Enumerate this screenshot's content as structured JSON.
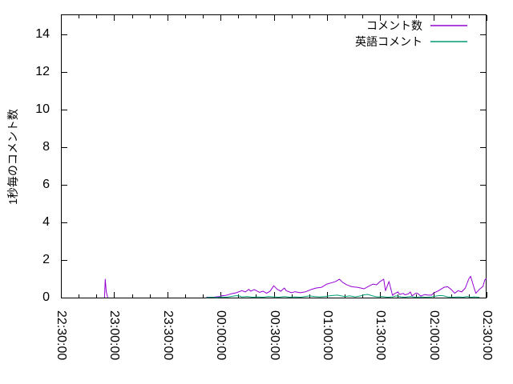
{
  "window": {
    "background": "#ffffff",
    "border_color": "#000000",
    "text_color": "#000000"
  },
  "chart_data": {
    "type": "line",
    "title": "",
    "xlabel": "",
    "ylabel": "1秒毎のコメント数",
    "grid": false,
    "legend_position": "top-right-inside",
    "x_axis": {
      "unit": "minutes since 22:30:00",
      "range_minutes": [
        0,
        240
      ],
      "major_tick_interval_minutes": 30,
      "minor_tick_interval_minutes": 10,
      "major_ticks": [
        {
          "minute": 0,
          "label": "22:30:00"
        },
        {
          "minute": 30,
          "label": "23:00:00"
        },
        {
          "minute": 60,
          "label": "23:30:00"
        },
        {
          "minute": 90,
          "label": "00:00:00"
        },
        {
          "minute": 120,
          "label": "00:30:00"
        },
        {
          "minute": 150,
          "label": "01:00:00"
        },
        {
          "minute": 180,
          "label": "01:30:00"
        },
        {
          "minute": 210,
          "label": "02:00:00"
        },
        {
          "minute": 240,
          "label": "02:30:00"
        }
      ],
      "tick_label_rotation_deg": 90
    },
    "y_axis": {
      "min": 0,
      "max": 15.1,
      "ticks": [
        0,
        2,
        4,
        6,
        8,
        10,
        12,
        14
      ]
    },
    "series": [
      {
        "name": "コメント数",
        "color": "#9400D3",
        "points_format": "[minute_since_22:30, comments_per_second]",
        "segments": [
          [
            [
              24.6,
              0
            ],
            [
              25.0,
              0.98
            ],
            [
              25.6,
              0.3
            ],
            [
              26.4,
              0
            ]
          ],
          [
            [
              82,
              0.02
            ],
            [
              86,
              0.02
            ],
            [
              89,
              0.05
            ],
            [
              91,
              0.1
            ],
            [
              93,
              0.12
            ],
            [
              96,
              0.2
            ],
            [
              99,
              0.26
            ],
            [
              102,
              0.37
            ],
            [
              104,
              0.3
            ],
            [
              106,
              0.44
            ],
            [
              107,
              0.34
            ],
            [
              109,
              0.43
            ],
            [
              112,
              0.28
            ],
            [
              114,
              0.34
            ],
            [
              116,
              0.23
            ],
            [
              118,
              0.35
            ],
            [
              120,
              0.63
            ],
            [
              122,
              0.44
            ],
            [
              124,
              0.34
            ],
            [
              126,
              0.51
            ],
            [
              127,
              0.37
            ],
            [
              130,
              0.26
            ],
            [
              132,
              0.31
            ],
            [
              135,
              0.26
            ],
            [
              138,
              0.31
            ],
            [
              141,
              0.43
            ],
            [
              144,
              0.51
            ],
            [
              147,
              0.55
            ],
            [
              148,
              0.61
            ],
            [
              150,
              0.72
            ],
            [
              153,
              0.8
            ],
            [
              155,
              0.86
            ],
            [
              157,
              0.98
            ],
            [
              159,
              0.8
            ],
            [
              161,
              0.69
            ],
            [
              162,
              0.65
            ],
            [
              164,
              0.58
            ],
            [
              167,
              0.55
            ],
            [
              169,
              0.51
            ],
            [
              171,
              0.47
            ],
            [
              173,
              0.58
            ],
            [
              176,
              0.72
            ],
            [
              178,
              0.68
            ],
            [
              180,
              0.86
            ],
            [
              182,
              0.98
            ],
            [
              183,
              0.37
            ],
            [
              185,
              0.86
            ],
            [
              187,
              0.12
            ],
            [
              188,
              0.2
            ],
            [
              190,
              0.3
            ],
            [
              191,
              0.17
            ],
            [
              193,
              0.22
            ],
            [
              194,
              0.15
            ],
            [
              196,
              0.2
            ],
            [
              197,
              0.3
            ],
            [
              198,
              0.09
            ],
            [
              200,
              0.23
            ],
            [
              201,
              0.23
            ],
            [
              203,
              0.08
            ],
            [
              205,
              0.16
            ],
            [
              207,
              0.13
            ],
            [
              209,
              0.13
            ],
            [
              210,
              0.23
            ],
            [
              213,
              0.37
            ],
            [
              216,
              0.55
            ],
            [
              218,
              0.58
            ],
            [
              220,
              0.44
            ],
            [
              222,
              0.23
            ],
            [
              224,
              0.37
            ],
            [
              226,
              0.3
            ],
            [
              228,
              0.51
            ],
            [
              230,
              1.0
            ],
            [
              231,
              1.13
            ],
            [
              233,
              0.51
            ],
            [
              234,
              0.23
            ],
            [
              236,
              0.44
            ],
            [
              238,
              0.6
            ],
            [
              239,
              0.94
            ],
            [
              240,
              1.03
            ]
          ]
        ]
      },
      {
        "name": "英語コメント",
        "color": "#009E73",
        "points_format": "[minute_since_22:30, comments_per_second]",
        "segments": [
          [
            [
              82,
              0
            ],
            [
              85,
              0.02
            ],
            [
              88,
              0
            ],
            [
              90,
              0.04
            ],
            [
              93,
              0.02
            ],
            [
              96,
              0.06
            ],
            [
              98,
              0.09
            ],
            [
              100,
              0.1
            ],
            [
              102,
              0.04
            ],
            [
              105,
              0.06
            ],
            [
              108,
              0.02
            ],
            [
              111,
              0.04
            ],
            [
              114,
              0.02
            ],
            [
              117,
              0.06
            ],
            [
              120,
              0.04
            ],
            [
              123,
              0.02
            ],
            [
              126,
              0.06
            ],
            [
              129,
              0.02
            ],
            [
              132,
              0.04
            ],
            [
              135,
              0.02
            ],
            [
              138,
              0.06
            ],
            [
              140,
              0.09
            ],
            [
              143,
              0.06
            ],
            [
              146,
              0.04
            ],
            [
              149,
              0.06
            ],
            [
              151,
              0.09
            ],
            [
              153,
              0.11
            ],
            [
              156,
              0.13
            ],
            [
              158,
              0.09
            ],
            [
              160,
              0.06
            ],
            [
              163,
              0.09
            ],
            [
              166,
              0.04
            ],
            [
              169,
              0.09
            ],
            [
              171,
              0.15
            ],
            [
              173,
              0.17
            ],
            [
              175,
              0.11
            ],
            [
              177,
              0.06
            ],
            [
              179,
              0.04
            ],
            [
              181,
              0.06
            ],
            [
              184,
              0.02
            ],
            [
              187,
              0.04
            ],
            [
              189,
              0.09
            ],
            [
              192,
              0.04
            ],
            [
              194,
              0.02
            ],
            [
              197,
              0.06
            ],
            [
              200,
              0.02
            ],
            [
              203,
              0.04
            ],
            [
              206,
              0.02
            ],
            [
              209,
              0.04
            ],
            [
              212,
              0.09
            ],
            [
              214,
              0.11
            ],
            [
              216,
              0.09
            ],
            [
              218,
              0.04
            ],
            [
              221,
              0.02
            ],
            [
              224,
              0.04
            ],
            [
              227,
              0.02
            ],
            [
              229,
              0.06
            ],
            [
              231,
              0.02
            ],
            [
              233,
              0.04
            ],
            [
              236,
              0.02
            ]
          ]
        ]
      }
    ]
  }
}
